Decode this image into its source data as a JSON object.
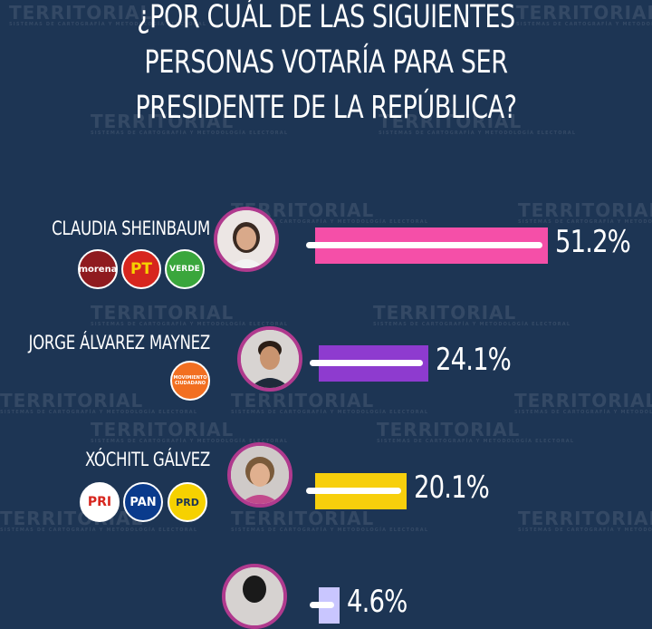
{
  "title": "¿POR CUÁL DE LAS SIGUIENTES PERSONAS VOTARÍA PARA SER PRESIDENTE DE LA REPÚBLICA?",
  "title_lines": [
    "¿POR CUÁL DE LAS SIGUIENTES",
    "PERSONAS VOTARÍA PARA SER",
    "PRESIDENTE DE LA REPÚBLICA?"
  ],
  "watermark": {
    "brand": "TERRITORIAL",
    "subtitle": "SISTEMAS DE CARTOGRAFÍA Y METODOLOGÍA ELECTORAL"
  },
  "parties": {
    "morena": {
      "label": "morena",
      "color": "#8f1b1f"
    },
    "pt": {
      "label": "PT",
      "color": "#d7261e"
    },
    "verde": {
      "label": "VERDE",
      "color": "#3aa63c"
    },
    "mc": {
      "label": "MOVIMIENTO CIUDADANO",
      "color": "#f26f21"
    },
    "pri": {
      "label": "PRI",
      "color": "#ffffff"
    },
    "pan": {
      "label": "PAN",
      "color": "#0a3b8c"
    },
    "prd": {
      "label": "PRD",
      "color": "#f6d100"
    }
  },
  "chart_data": {
    "type": "bar",
    "orientation": "horizontal",
    "categories": [
      "CLAUDIA SHEINBAUM",
      "JORGE ÁLVAREZ MAYNEZ",
      "XÓCHITL GÁLVEZ",
      ""
    ],
    "values": [
      51.2,
      24.1,
      20.1,
      4.6
    ],
    "labels": [
      "51.2%",
      "24.1%",
      "20.1%",
      "4.6%"
    ],
    "colors": [
      "#f54fa8",
      "#8e3bcf",
      "#f7cf0c",
      "#c9c6ff"
    ],
    "xlim": [
      0,
      100
    ]
  }
}
